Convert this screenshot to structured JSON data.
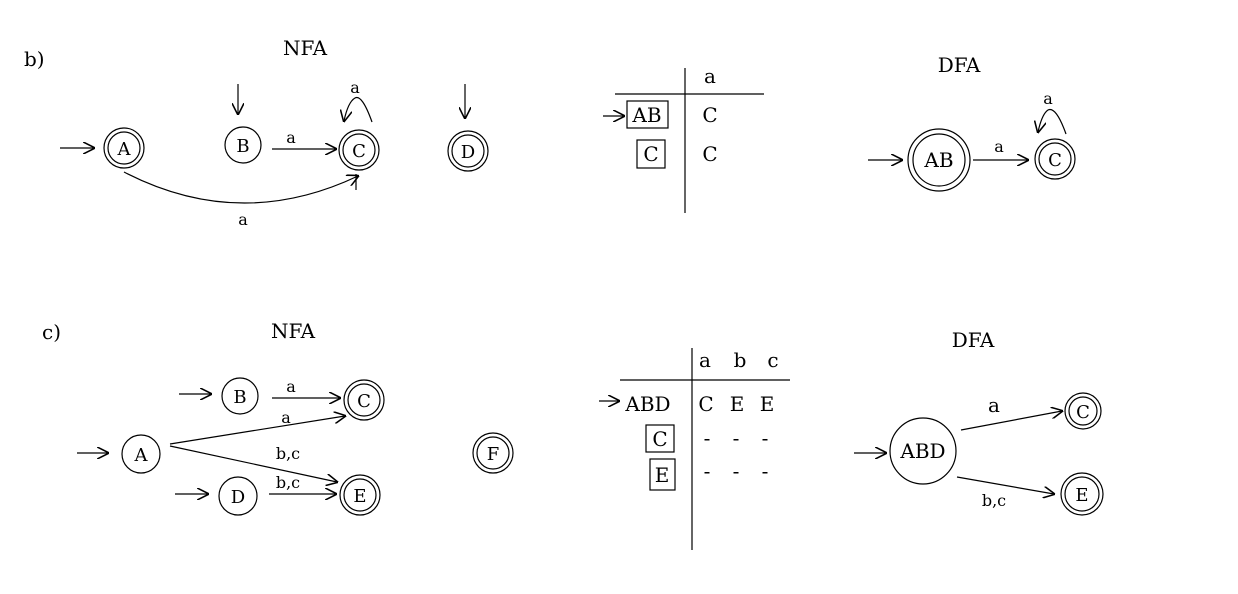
{
  "part_b": {
    "label": "b)",
    "nfa": {
      "title": "NFA",
      "states": {
        "A": "A",
        "B": "B",
        "C": "C",
        "D": "D"
      },
      "edge_labels": {
        "B_to_C": "a",
        "C_loop": "a",
        "A_to_C": "a"
      }
    },
    "table": {
      "headers": [
        "a"
      ],
      "rows": [
        {
          "state": "AB",
          "cells": [
            "C"
          ]
        },
        {
          "state": "C",
          "cells": [
            "C"
          ]
        }
      ]
    },
    "dfa": {
      "title": "DFA",
      "states": {
        "AB": "AB",
        "C": "C"
      },
      "edge_labels": {
        "AB_to_C": "a",
        "C_loop": "a"
      }
    }
  },
  "part_c": {
    "label": "c)",
    "nfa": {
      "title": "NFA",
      "states": {
        "A": "A",
        "B": "B",
        "C": "C",
        "D": "D",
        "E": "E",
        "F": "F"
      },
      "edge_labels": {
        "B_to_C": "a",
        "A_to_C": "a",
        "A_to_E": "b,c",
        "D_to_E": "b,c"
      }
    },
    "table": {
      "headers": [
        "a",
        "b",
        "c"
      ],
      "rows": [
        {
          "state": "ABD",
          "cells": [
            "C",
            "E",
            "E"
          ]
        },
        {
          "state": "C",
          "cells": [
            "-",
            "-",
            "-"
          ]
        },
        {
          "state": "E",
          "cells": [
            "-",
            "-",
            "-"
          ]
        }
      ]
    },
    "dfa": {
      "title": "DFA",
      "states": {
        "ABD": "ABD",
        "C": "C",
        "E": "E"
      },
      "edge_labels": {
        "ABD_to_C": "a",
        "ABD_to_E": "b,c"
      }
    }
  }
}
